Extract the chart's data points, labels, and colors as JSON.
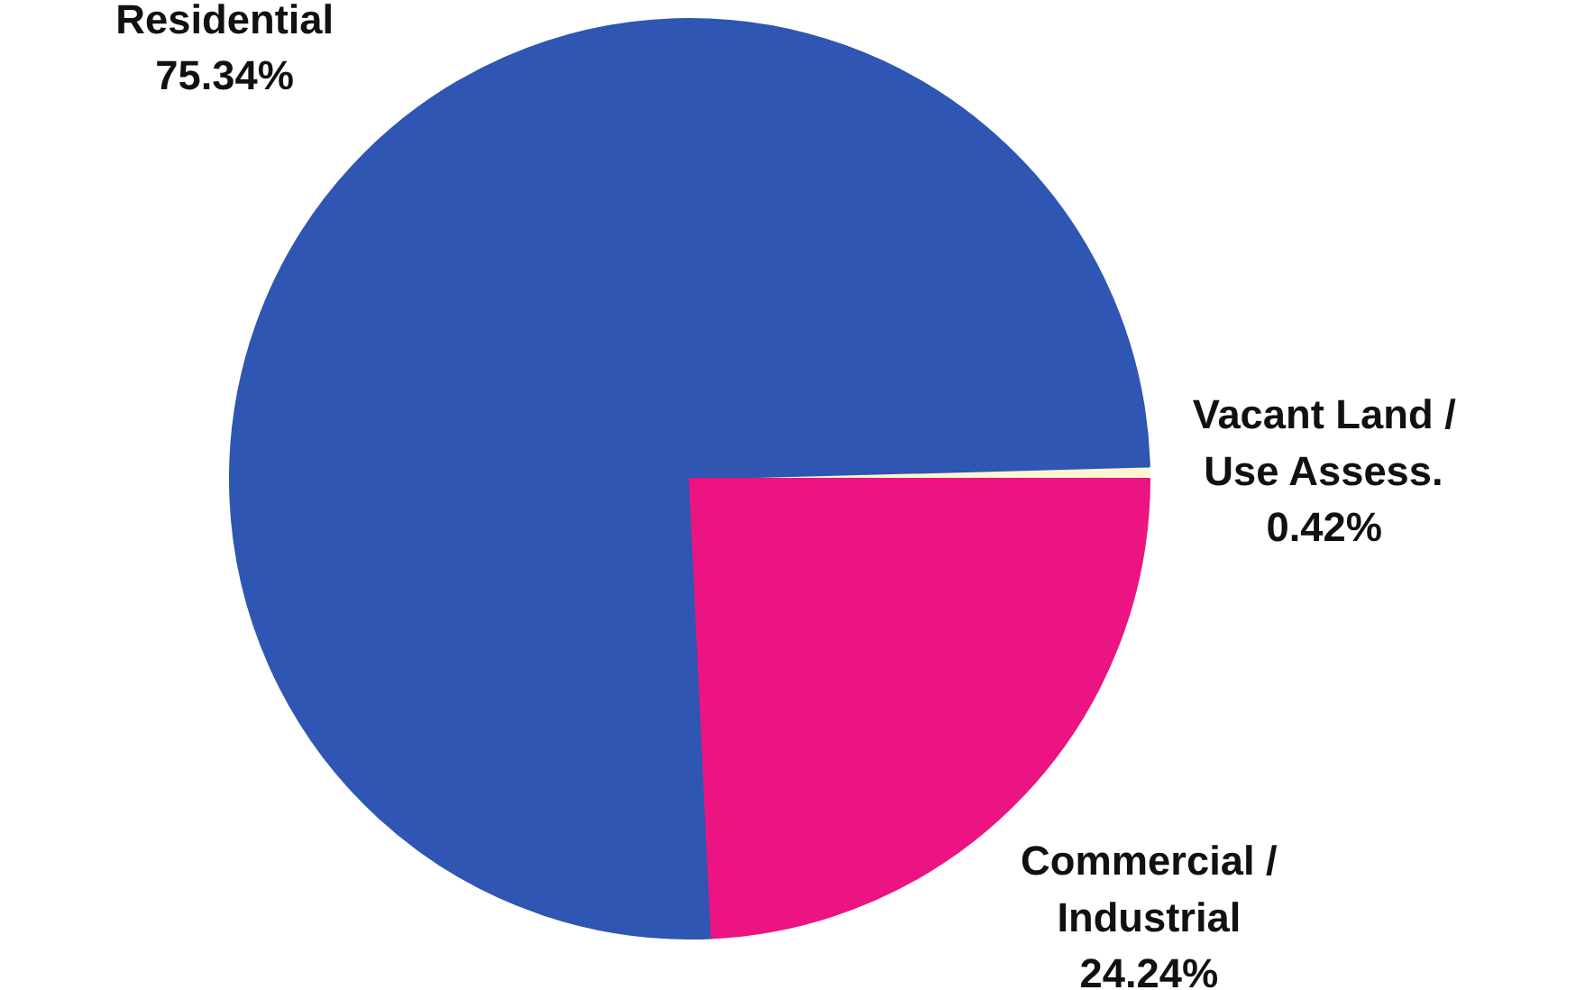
{
  "chart_data": {
    "type": "pie",
    "categories": [
      "Vacant Land / Use Assess.",
      "Residential",
      "Commercial / Industrial"
    ],
    "values": [
      0.42,
      75.34,
      24.24
    ],
    "colors": [
      "#fdf6d2",
      "#2f56b2",
      "#ec1483"
    ],
    "value_labels": [
      "0.42%",
      "75.34%",
      "24.24%"
    ]
  }
}
